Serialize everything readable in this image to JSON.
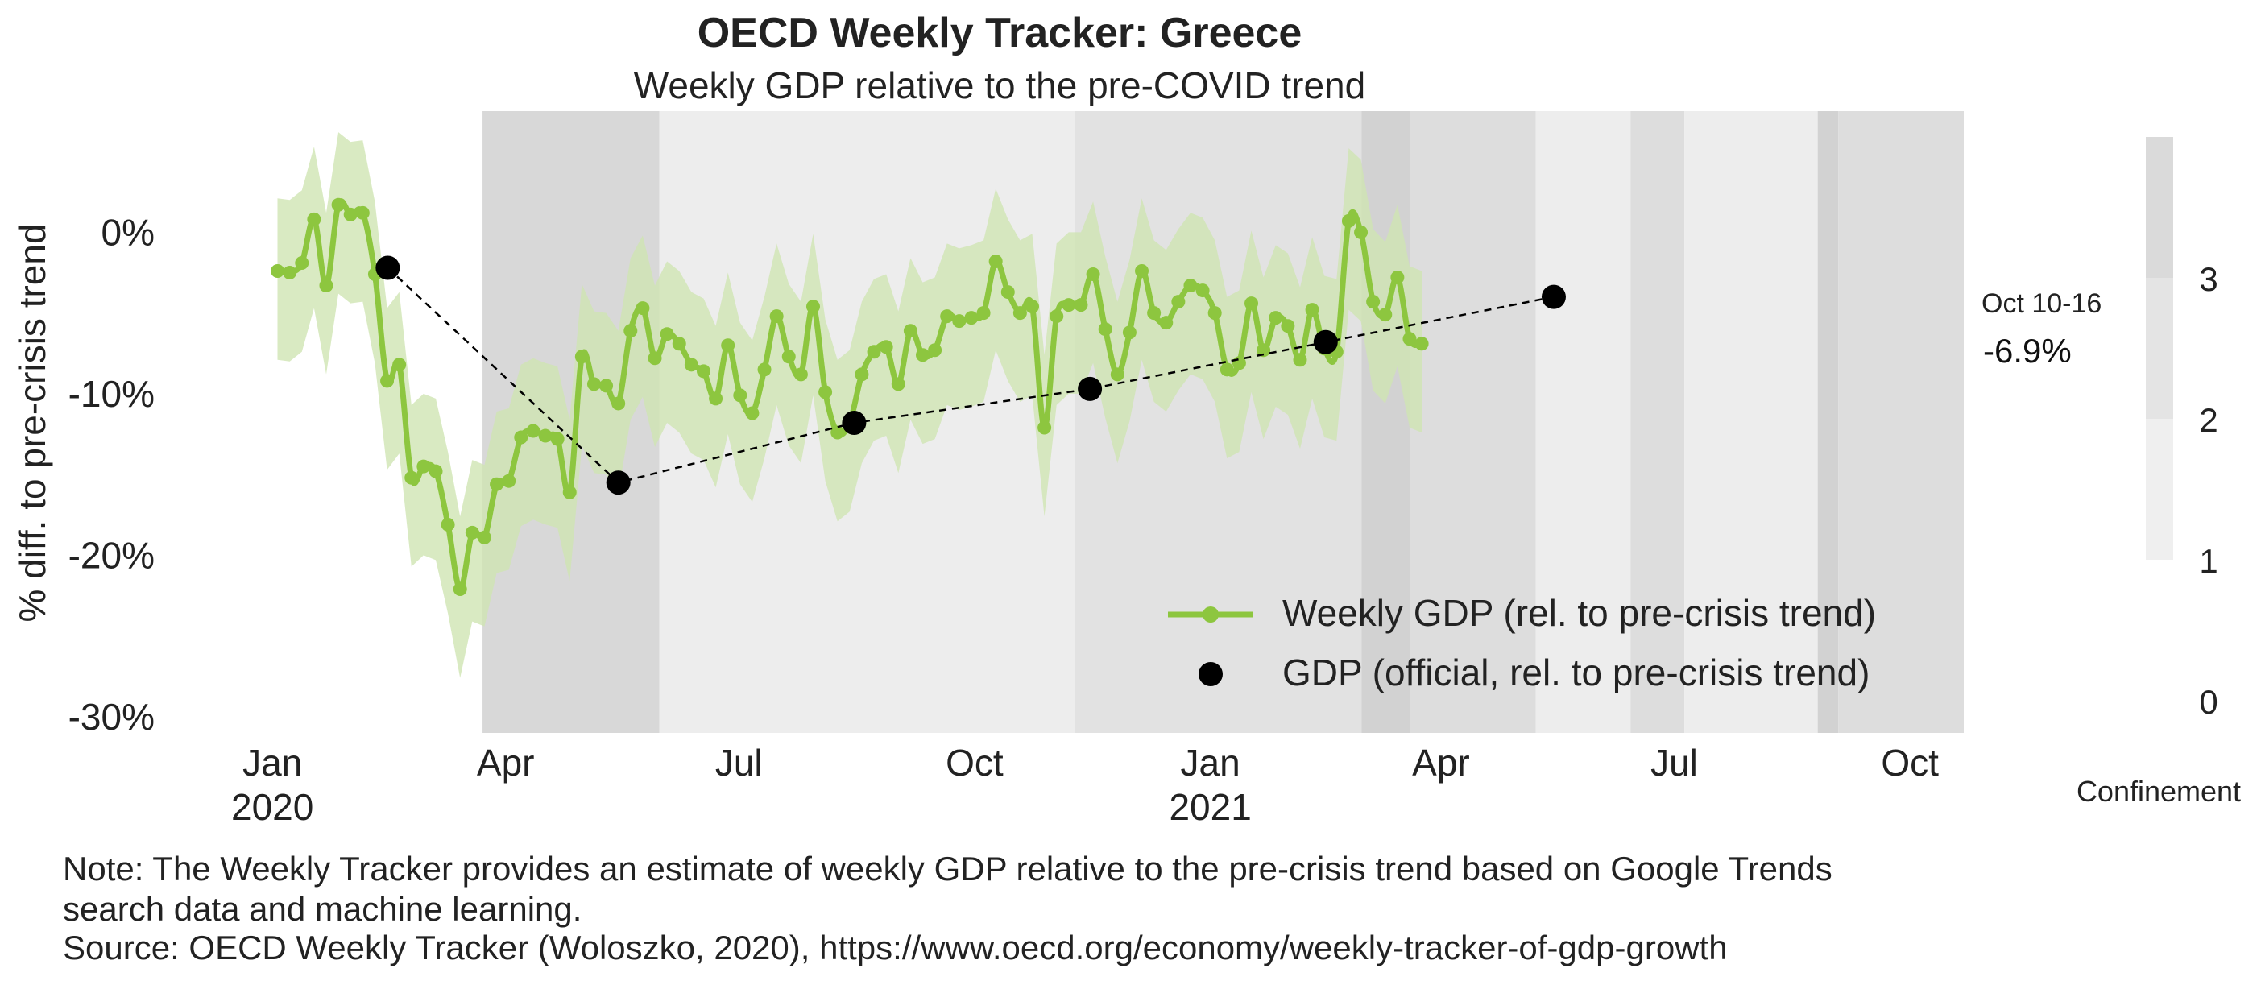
{
  "chart_data": {
    "type": "line",
    "title": "OECD Weekly Tracker: Greece",
    "subtitle": "Weekly GDP relative to the pre-COVID trend",
    "ylabel": "% diff. to pre-crisis trend",
    "xlabel": "",
    "ylim": [
      -0.31,
      0.075
    ],
    "y_ticks": [
      {
        "value": 0,
        "label": "0%"
      },
      {
        "value": -0.1,
        "label": "-10%"
      },
      {
        "value": -0.2,
        "label": "-20%"
      },
      {
        "value": -0.3,
        "label": "-30%"
      }
    ],
    "x_range": [
      "2019-12-20",
      "2021-10-22"
    ],
    "x_ticks": [
      {
        "date": "2020-01-01",
        "label": "Jan",
        "year": "2020"
      },
      {
        "date": "2020-04-01",
        "label": "Apr",
        "year": ""
      },
      {
        "date": "2020-07-01",
        "label": "Jul",
        "year": ""
      },
      {
        "date": "2020-10-01",
        "label": "Oct",
        "year": ""
      },
      {
        "date": "2021-01-01",
        "label": "Jan",
        "year": "2021"
      },
      {
        "date": "2021-04-01",
        "label": "Apr",
        "year": ""
      },
      {
        "date": "2021-07-01",
        "label": "Jul",
        "year": ""
      },
      {
        "date": "2021-10-01",
        "label": "Oct",
        "year": ""
      }
    ],
    "confinement_periods": [
      {
        "start": "2020-03-23",
        "end": "2020-05-31",
        "level": 3
      },
      {
        "start": "2020-05-31",
        "end": "2020-11-09",
        "level": 1
      },
      {
        "start": "2020-11-09",
        "end": "2021-03-01",
        "level": 2
      },
      {
        "start": "2021-03-01",
        "end": "2021-03-20",
        "level": 3.5
      },
      {
        "start": "2021-03-20",
        "end": "2021-05-08",
        "level": 2.5
      },
      {
        "start": "2021-05-08",
        "end": "2021-06-14",
        "level": 1
      },
      {
        "start": "2021-06-14",
        "end": "2021-07-05",
        "level": 2.5
      },
      {
        "start": "2021-07-05",
        "end": "2021-08-26",
        "level": 1
      },
      {
        "start": "2021-08-26",
        "end": "2021-09-03",
        "level": 3.5
      },
      {
        "start": "2021-09-03",
        "end": "2021-10-22",
        "level": 2.5
      }
    ],
    "series": [
      {
        "name": "Weekly GDP (rel. to pre-crisis trend)",
        "color": "#8dc63f",
        "band_color": "#cfe5b3",
        "start": "2020-01-03",
        "step_days": 4.75,
        "values": [
          -0.024,
          -0.025,
          -0.019,
          0.008,
          -0.033,
          0.017,
          0.011,
          0.012,
          -0.026,
          -0.092,
          -0.082,
          -0.152,
          -0.145,
          -0.148,
          -0.181,
          -0.221,
          -0.186,
          -0.189,
          -0.156,
          -0.154,
          -0.127,
          -0.123,
          -0.126,
          -0.128,
          -0.161,
          -0.077,
          -0.094,
          -0.095,
          -0.106,
          -0.061,
          -0.047,
          -0.078,
          -0.063,
          -0.069,
          -0.082,
          -0.086,
          -0.103,
          -0.07,
          -0.101,
          -0.112,
          -0.085,
          -0.052,
          -0.077,
          -0.088,
          -0.046,
          -0.099,
          -0.124,
          -0.118,
          -0.088,
          -0.074,
          -0.071,
          -0.094,
          -0.061,
          -0.076,
          -0.073,
          -0.052,
          -0.055,
          -0.053,
          -0.05,
          -0.018,
          -0.037,
          -0.05,
          -0.046,
          -0.121,
          -0.052,
          -0.045,
          -0.045,
          -0.026,
          -0.06,
          -0.088,
          -0.062,
          -0.024,
          -0.05,
          -0.056,
          -0.043,
          -0.033,
          -0.036,
          -0.05,
          -0.085,
          -0.081,
          -0.044,
          -0.073,
          -0.053,
          -0.058,
          -0.079,
          -0.048,
          -0.072,
          -0.074,
          0.007,
          -0.0,
          -0.043,
          -0.051,
          -0.028,
          -0.066,
          -0.069
        ],
        "last_label_dates": "Oct 10-16",
        "last_label_value": "-6.9%"
      },
      {
        "name": "GDP (official, rel. to pre-crisis trend)",
        "color": "#000000",
        "points": [
          {
            "date": "2020-02-15",
            "value": -0.022
          },
          {
            "date": "2020-05-15",
            "value": -0.155
          },
          {
            "date": "2020-08-15",
            "value": -0.118
          },
          {
            "date": "2020-11-15",
            "value": -0.097
          },
          {
            "date": "2021-02-15",
            "value": -0.068
          },
          {
            "date": "2021-05-15",
            "value": -0.04
          }
        ]
      }
    ],
    "legend_position": "bottom-right",
    "grid": false,
    "confinement_scale": {
      "title": "Confinement",
      "ticks": [
        "0",
        "1",
        "2",
        "3"
      ]
    }
  },
  "notes": {
    "line1": "Note: The Weekly Tracker provides an estimate of weekly GDP relative to the pre-crisis trend based on Google Trends",
    "line2": "search data and machine learning.",
    "line3": "Source: OECD Weekly Tracker (Woloszko, 2020), https://www.oecd.org/economy/weekly-tracker-of-gdp-growth"
  }
}
